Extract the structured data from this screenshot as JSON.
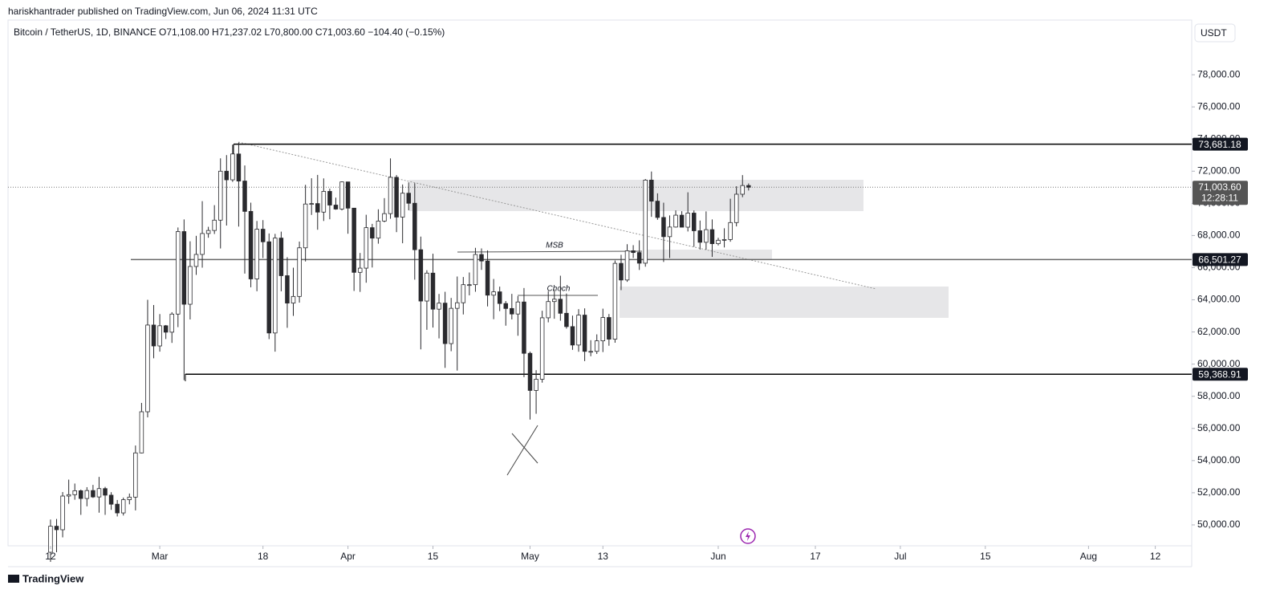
{
  "header": {
    "publisher": "hariskhantrader published on TradingView.com, Jun 06, 2024 11:31 UTC"
  },
  "footer": {
    "brand": "TradingView"
  },
  "chart_data": {
    "type": "candlestick",
    "title": "Bitcoin / TetherUS, 1D, BINANCE",
    "ohlc_summary": "O71,108.00 H71,237.02 L70,800.00 C71,003.60 −104.40 (−0.15%)",
    "currency": "USDT",
    "up_color": "#ffffff",
    "down_color": "#2a2a2e",
    "grid": false,
    "x": [
      "2024-02-12",
      "2024-02-13",
      "2024-02-14",
      "2024-02-15",
      "2024-02-16",
      "2024-02-17",
      "2024-02-18",
      "2024-02-19",
      "2024-02-20",
      "2024-02-21",
      "2024-02-22",
      "2024-02-23",
      "2024-02-24",
      "2024-02-25",
      "2024-02-26",
      "2024-02-27",
      "2024-02-28",
      "2024-02-29",
      "2024-03-01",
      "2024-03-02",
      "2024-03-03",
      "2024-03-04",
      "2024-03-05",
      "2024-03-06",
      "2024-03-07",
      "2024-03-08",
      "2024-03-09",
      "2024-03-10",
      "2024-03-11",
      "2024-03-12",
      "2024-03-13",
      "2024-03-14",
      "2024-03-15",
      "2024-03-16",
      "2024-03-17",
      "2024-03-18",
      "2024-03-19",
      "2024-03-20",
      "2024-03-21",
      "2024-03-22",
      "2024-03-23",
      "2024-03-24",
      "2024-03-25",
      "2024-03-26",
      "2024-03-27",
      "2024-03-28",
      "2024-03-29",
      "2024-03-30",
      "2024-03-31",
      "2024-04-01",
      "2024-04-02",
      "2024-04-03",
      "2024-04-04",
      "2024-04-05",
      "2024-04-06",
      "2024-04-07",
      "2024-04-08",
      "2024-04-09",
      "2024-04-10",
      "2024-04-11",
      "2024-04-12",
      "2024-04-13",
      "2024-04-14",
      "2024-04-15",
      "2024-04-16",
      "2024-04-17",
      "2024-04-18",
      "2024-04-19",
      "2024-04-20",
      "2024-04-21",
      "2024-04-22",
      "2024-04-23",
      "2024-04-24",
      "2024-04-25",
      "2024-04-26",
      "2024-04-27",
      "2024-04-28",
      "2024-04-29",
      "2024-04-30",
      "2024-05-01",
      "2024-05-02",
      "2024-05-03",
      "2024-05-04",
      "2024-05-05",
      "2024-05-06",
      "2024-05-07",
      "2024-05-08",
      "2024-05-09",
      "2024-05-10",
      "2024-05-11",
      "2024-05-12",
      "2024-05-13",
      "2024-05-14",
      "2024-05-15",
      "2024-05-16",
      "2024-05-17",
      "2024-05-18",
      "2024-05-19",
      "2024-05-20",
      "2024-05-21",
      "2024-05-22",
      "2024-05-23",
      "2024-05-24",
      "2024-05-25",
      "2024-05-26",
      "2024-05-27",
      "2024-05-28",
      "2024-05-29",
      "2024-05-30",
      "2024-05-31",
      "2024-06-01",
      "2024-06-02",
      "2024-06-03",
      "2024-06-04",
      "2024-06-05",
      "2024-06-06"
    ],
    "open": [
      48300,
      49917,
      49699,
      51795,
      51880,
      52125,
      51642,
      52137,
      51739,
      52258,
      51849,
      51288,
      50744,
      51568,
      51728,
      54477,
      57037,
      62432,
      61130,
      62387,
      61987,
      63113,
      68245,
      63724,
      66074,
      66823,
      68124,
      68313,
      68955,
      72000,
      71463,
      73072,
      71388,
      69500,
      65300,
      68393,
      67609,
      61937,
      67840,
      65501,
      63796,
      64209,
      67234,
      69958,
      69987,
      69455,
      70744,
      69892,
      69645,
      71333,
      69702,
      65709,
      65970,
      68488,
      67837,
      68897,
      69360,
      71620,
      69146,
      70631,
      70006,
      67116,
      63924,
      65661,
      63419,
      63793,
      61277,
      63470,
      63818,
      64941,
      64941,
      66819,
      66414,
      64289,
      64498,
      63770,
      63461,
      63118,
      63866,
      60672,
      58364,
      59060,
      62882,
      63892,
      64038,
      63162,
      62334,
      61187,
      63049,
      60792,
      60793,
      61448,
      62901,
      61552,
      66267,
      65232,
      67051,
      66940,
      66278,
      71447,
      70136,
      69122,
      67929,
      68526,
      69265,
      68518,
      69394,
      68296,
      67578,
      68364,
      67491,
      67706,
      67751,
      68804,
      70567,
      71108
    ],
    "high": [
      50334,
      50368,
      52043,
      52816,
      52572,
      52200,
      52347,
      52488,
      52985,
      52366,
      52035,
      51550,
      51700,
      51950,
      54938,
      57588,
      64000,
      63676,
      63114,
      62433,
      63231,
      68499,
      69000,
      67641,
      67980,
      70136,
      68541,
      69887,
      72800,
      73000,
      73650,
      73777,
      72357,
      70043,
      68904,
      68957,
      68124,
      68100,
      68240,
      66650,
      65999,
      67622,
      71150,
      71561,
      71769,
      71552,
      70916,
      70355,
      71366,
      71342,
      69708,
      66914,
      69291,
      68725,
      69629,
      70326,
      72797,
      71758,
      71172,
      71305,
      71256,
      67931,
      65840,
      66867,
      64365,
      64499,
      64117,
      65450,
      65419,
      65700,
      67233,
      67199,
      67075,
      65297,
      64820,
      63923,
      64370,
      64228,
      64734,
      60780,
      59625,
      63320,
      64544,
      64646,
      65500,
      64391,
      63018,
      63421,
      63469,
      61490,
      61850,
      63450,
      63118,
      66444,
      66800,
      67459,
      67400,
      67700,
      71515,
      71980,
      70623,
      70041,
      69250,
      69563,
      69512,
      70687,
      69560,
      68929,
      69500,
      69000,
      67857,
      68450,
      70288,
      71063,
      71758,
      71237.02
    ],
    "low": [
      47700,
      48300,
      49225,
      51314,
      51566,
      50625,
      51156,
      51677,
      50760,
      50625,
      50935,
      50525,
      50584,
      51280,
      50901,
      54450,
      56690,
      60364,
      60777,
      61561,
      61320,
      62300,
      59005,
      62779,
      65551,
      66000,
      67861,
      68094,
      67194,
      68620,
      71334,
      68555,
      65630,
      64780,
      64533,
      66600,
      61555,
      60775,
      64529,
      62260,
      63000,
      63825,
      66385,
      69280,
      68359,
      68903,
      69009,
      69601,
      69562,
      68110,
      64550,
      64493,
      65064,
      66011,
      67491,
      68824,
      69043,
      68210,
      67518,
      69567,
      65254,
      60919,
      62134,
      62274,
      61600,
      59768,
      60803,
      59600,
      63090,
      64278,
      64500,
      65864,
      63589,
      62794,
      63297,
      62391,
      62781,
      61765,
      59191,
      56552,
      56911,
      58848,
      62599,
      62822,
      62700,
      62208,
      60888,
      60769,
      60187,
      60492,
      60632,
      60750,
      61142,
      61330,
      64600,
      65119,
      66600,
      65857,
      66060,
      69162,
      68977,
      66356,
      66600,
      68491,
      68777,
      68250,
      67300,
      67125,
      67118,
      66670,
      67386,
      67257,
      67613,
      68567,
      70383,
      70800
    ],
    "close": [
      49917,
      49699,
      51795,
      51880,
      52125,
      51642,
      52137,
      51739,
      52258,
      51849,
      51288,
      50744,
      51568,
      51728,
      54477,
      57037,
      62432,
      61130,
      62387,
      61987,
      63113,
      68245,
      63724,
      66074,
      66823,
      68124,
      68313,
      68955,
      72000,
      71463,
      73072,
      71388,
      69500,
      65300,
      68393,
      67609,
      61937,
      67840,
      65501,
      63796,
      64209,
      67234,
      69958,
      69987,
      69455,
      70744,
      69892,
      69645,
      71333,
      69702,
      65709,
      65970,
      68488,
      67837,
      68897,
      69360,
      71620,
      69146,
      70631,
      70006,
      67116,
      63924,
      65661,
      63419,
      63793,
      61277,
      63470,
      63818,
      64941,
      64941,
      66819,
      66414,
      64289,
      64498,
      63770,
      63461,
      63118,
      63866,
      60672,
      58364,
      59060,
      62882,
      63892,
      64038,
      63162,
      62334,
      61187,
      63049,
      60792,
      60793,
      61448,
      62901,
      61552,
      66267,
      65232,
      67051,
      66940,
      66278,
      71447,
      70136,
      69122,
      67929,
      68526,
      69265,
      68518,
      69394,
      68296,
      67578,
      68364,
      67491,
      67706,
      67751,
      68804,
      70567,
      71108,
      71003.6
    ],
    "xlim": [
      "2024-02-05",
      "2024-08-18"
    ],
    "xticks": [
      {
        "value": "2024-02-12",
        "label": "12"
      },
      {
        "value": "2024-03-01",
        "label": "Mar"
      },
      {
        "value": "2024-03-18",
        "label": "18"
      },
      {
        "value": "2024-04-01",
        "label": "Apr"
      },
      {
        "value": "2024-04-15",
        "label": "15"
      },
      {
        "value": "2024-05-01",
        "label": "May"
      },
      {
        "value": "2024-05-13",
        "label": "13"
      },
      {
        "value": "2024-06-01",
        "label": "Jun"
      },
      {
        "value": "2024-06-17",
        "label": "17"
      },
      {
        "value": "2024-07-01",
        "label": "Jul"
      },
      {
        "value": "2024-07-15",
        "label": "15"
      },
      {
        "value": "2024-08-01",
        "label": "Aug"
      },
      {
        "value": "2024-08-12",
        "label": "12"
      }
    ],
    "ylim": [
      48700,
      81400
    ],
    "yticks": [
      {
        "value": 50000,
        "label": "50,000.00"
      },
      {
        "value": 52000,
        "label": "52,000.00"
      },
      {
        "value": 54000,
        "label": "54,000.00"
      },
      {
        "value": 56000,
        "label": "56,000.00"
      },
      {
        "value": 58000,
        "label": "58,000.00"
      },
      {
        "value": 60000,
        "label": "60,000.00"
      },
      {
        "value": 62000,
        "label": "62,000.00"
      },
      {
        "value": 64000,
        "label": "64,000.00"
      },
      {
        "value": 66000,
        "label": "66,000.00"
      },
      {
        "value": 68000,
        "label": "68,000.00"
      },
      {
        "value": 70000,
        "label": "70,000.00"
      },
      {
        "value": 72000,
        "label": "72,000.00"
      },
      {
        "value": 74000,
        "label": "74,000.00"
      },
      {
        "value": 76000,
        "label": "76,000.00"
      },
      {
        "value": 78000,
        "label": "78,000.00"
      }
    ],
    "price_lines": [
      {
        "value": 73681.18,
        "label": "73,681.18"
      },
      {
        "value": 66501.27,
        "label": "66,501.27"
      },
      {
        "value": 59368.91,
        "label": "59,368.91"
      }
    ],
    "last_price": {
      "value": 71003.6,
      "label": "71,003.60",
      "countdown": "12:28:11"
    },
    "annotations": [
      "MSB",
      "Choch"
    ]
  }
}
